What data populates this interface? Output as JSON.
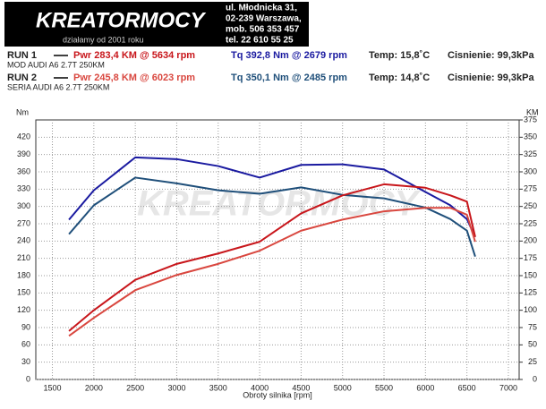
{
  "header": {
    "logo": "KREATORMOCY",
    "tagline": "działamy od 2001 roku",
    "address": [
      "ul. Młodnicka 31,",
      "02-239  Warszawa,",
      "mob.  506 353 457",
      "tel.  22 610 55 25"
    ],
    "runs": [
      {
        "label": "RUN 1",
        "power": "Pwr  283,4 KM @ 5634 rpm",
        "torque": "Tq 392,8 Nm @ 2679 rpm",
        "temp": "Temp: 15,8˚C",
        "pressure": "Cisnienie: 99,3kPa",
        "desc": "MOD AUDI A6 2.7T 250KM"
      },
      {
        "label": "RUN 2",
        "power": "Pwr  245,8 KM @ 6023 rpm",
        "torque": "Tq 350,1 Nm @ 2485 rpm",
        "temp": "Temp: 14,8˚C",
        "pressure": "Cisnienie: 99,3kPa",
        "desc": "SERIA AUDI A6 2.7T 250KM"
      }
    ]
  },
  "chart_data": {
    "type": "line",
    "xlabel": "Obroty silnika [rpm]",
    "ylabel": "Nm",
    "y2label": "KM",
    "x": [
      1700,
      2000,
      2500,
      3000,
      3500,
      4000,
      4500,
      5000,
      5500,
      6000,
      6300,
      6500,
      6600
    ],
    "xlim": [
      1300,
      7130
    ],
    "xticks": [
      1500,
      2000,
      2500,
      3000,
      3500,
      4000,
      4500,
      5000,
      5500,
      6000,
      6500,
      7000
    ],
    "ylim": [
      0,
      450
    ],
    "yticks": [
      0,
      30,
      60,
      90,
      120,
      150,
      180,
      210,
      240,
      270,
      300,
      330,
      360,
      390,
      420
    ],
    "y2lim": [
      0,
      375
    ],
    "y2ticks": [
      0,
      25,
      50,
      75,
      100,
      125,
      150,
      175,
      200,
      225,
      250,
      275,
      300,
      325,
      350,
      375
    ],
    "grid": true,
    "series": [
      {
        "name": "Tq RUN 1",
        "color": "#1a1aa0",
        "values": [
          277,
          328,
          385,
          382,
          370,
          350,
          372,
          373,
          364,
          325,
          302,
          278,
          247
        ]
      },
      {
        "name": "Tq RUN 2",
        "color": "#1f4f7a",
        "values": [
          252,
          302,
          350,
          340,
          328,
          322,
          333,
          320,
          314,
          298,
          278,
          258,
          213
        ]
      },
      {
        "name": "Pwr RUN 1",
        "color": "#c8161b",
        "axis": "y2",
        "values": [
          70,
          100,
          144,
          167,
          182,
          199,
          240,
          266,
          282,
          277,
          266,
          257,
          206
        ]
      },
      {
        "name": "Pwr RUN 2",
        "color": "#d9473f",
        "axis": "y2",
        "values": [
          63,
          89,
          129,
          151,
          167,
          186,
          215,
          231,
          243,
          248,
          248,
          238,
          199
        ]
      }
    ]
  }
}
